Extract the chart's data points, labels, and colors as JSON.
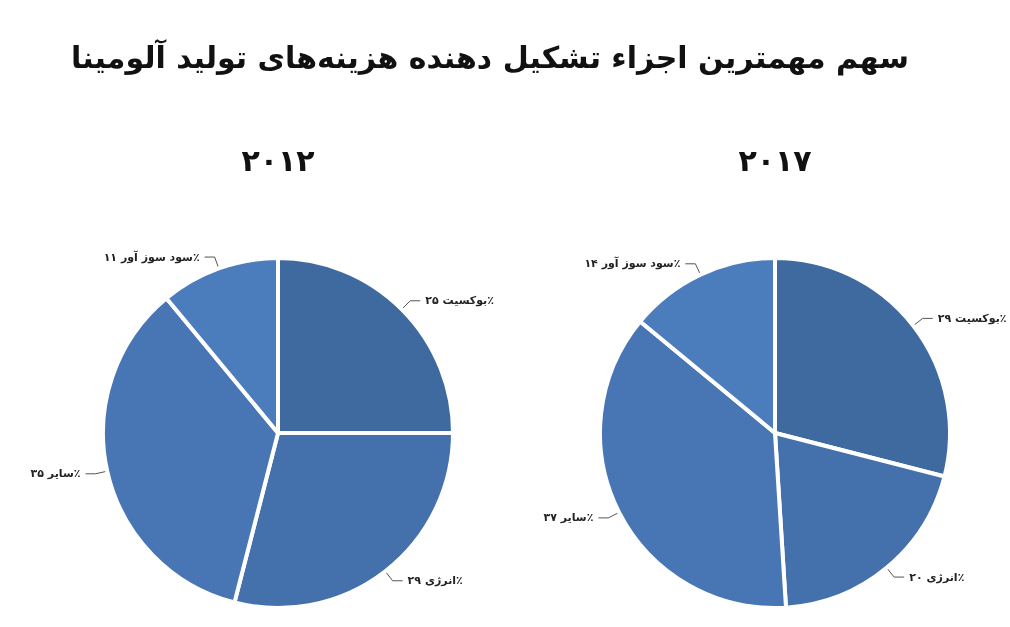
{
  "chart_data": [
    {
      "type": "pie",
      "title": "۲۰۱۲",
      "annotations": [
        "سهم مهمترین اجزاء تشکیل دهنده هزینه‌های تولید آلومینا"
      ],
      "categories": [
        "بوکسیت",
        "انرژی",
        "سایر",
        "سود سوز آور"
      ],
      "values": [
        25,
        29,
        35,
        11
      ],
      "value_labels": [
        "۲۵٪",
        "۲۹٪",
        "۳۵٪",
        "۱۱٪"
      ],
      "colors": [
        "#3f6a9f",
        "#4471ab",
        "#4876b4",
        "#4b7cbb"
      ],
      "legend": false
    },
    {
      "type": "pie",
      "title": "۲۰۱۷",
      "categories": [
        "بوکسیت",
        "انرژی",
        "سایر",
        "سود سوز آور"
      ],
      "values": [
        29,
        20,
        37,
        14
      ],
      "value_labels": [
        "۲۹٪",
        "۲۰٪",
        "۳۷٪",
        "۱۴٪"
      ],
      "colors": [
        "#3f6a9f",
        "#4471ab",
        "#4876b4",
        "#4b7cbb"
      ],
      "legend": false
    }
  ]
}
